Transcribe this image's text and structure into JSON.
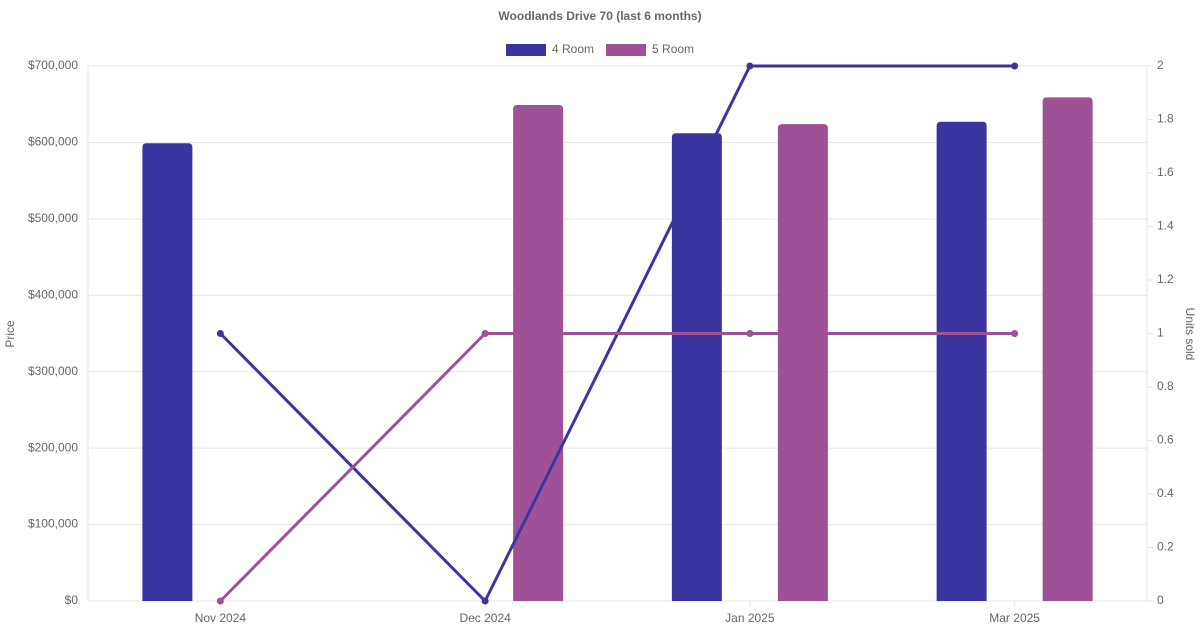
{
  "chart_data": {
    "type": "bar-line",
    "title": "Woodlands Drive 70 (last 6 months)",
    "y_label": "Price",
    "y2_label": "Units sold",
    "categories": [
      "Nov 2024",
      "Dec 2024",
      "Jan 2025",
      "Mar 2025"
    ],
    "series": [
      {
        "name": "4 Room",
        "color": "#3a35a1",
        "values": [
          599000,
          null,
          612000,
          627000
        ],
        "units": [
          1,
          0,
          2,
          2
        ]
      },
      {
        "name": "5 Room",
        "color": "#9e5196",
        "values": [
          null,
          649000,
          624000,
          659000
        ],
        "units": [
          0,
          1,
          1,
          1
        ]
      }
    ],
    "ylim": [
      0,
      700000
    ],
    "yticks": [
      {
        "value": 0,
        "label": "$0"
      },
      {
        "value": 100000,
        "label": "$100,000"
      },
      {
        "value": 200000,
        "label": "$200,000"
      },
      {
        "value": 300000,
        "label": "$300,000"
      },
      {
        "value": 400000,
        "label": "$400,000"
      },
      {
        "value": 500000,
        "label": "$500,000"
      },
      {
        "value": 600000,
        "label": "$600,000"
      },
      {
        "value": 700000,
        "label": "$700,000"
      }
    ],
    "y2lim": [
      0,
      2
    ],
    "y2ticks": [
      0,
      0.2,
      0.4,
      0.6,
      0.8,
      1,
      1.2,
      1.4,
      1.6,
      1.8,
      2
    ],
    "grid": true,
    "legend": "top"
  }
}
